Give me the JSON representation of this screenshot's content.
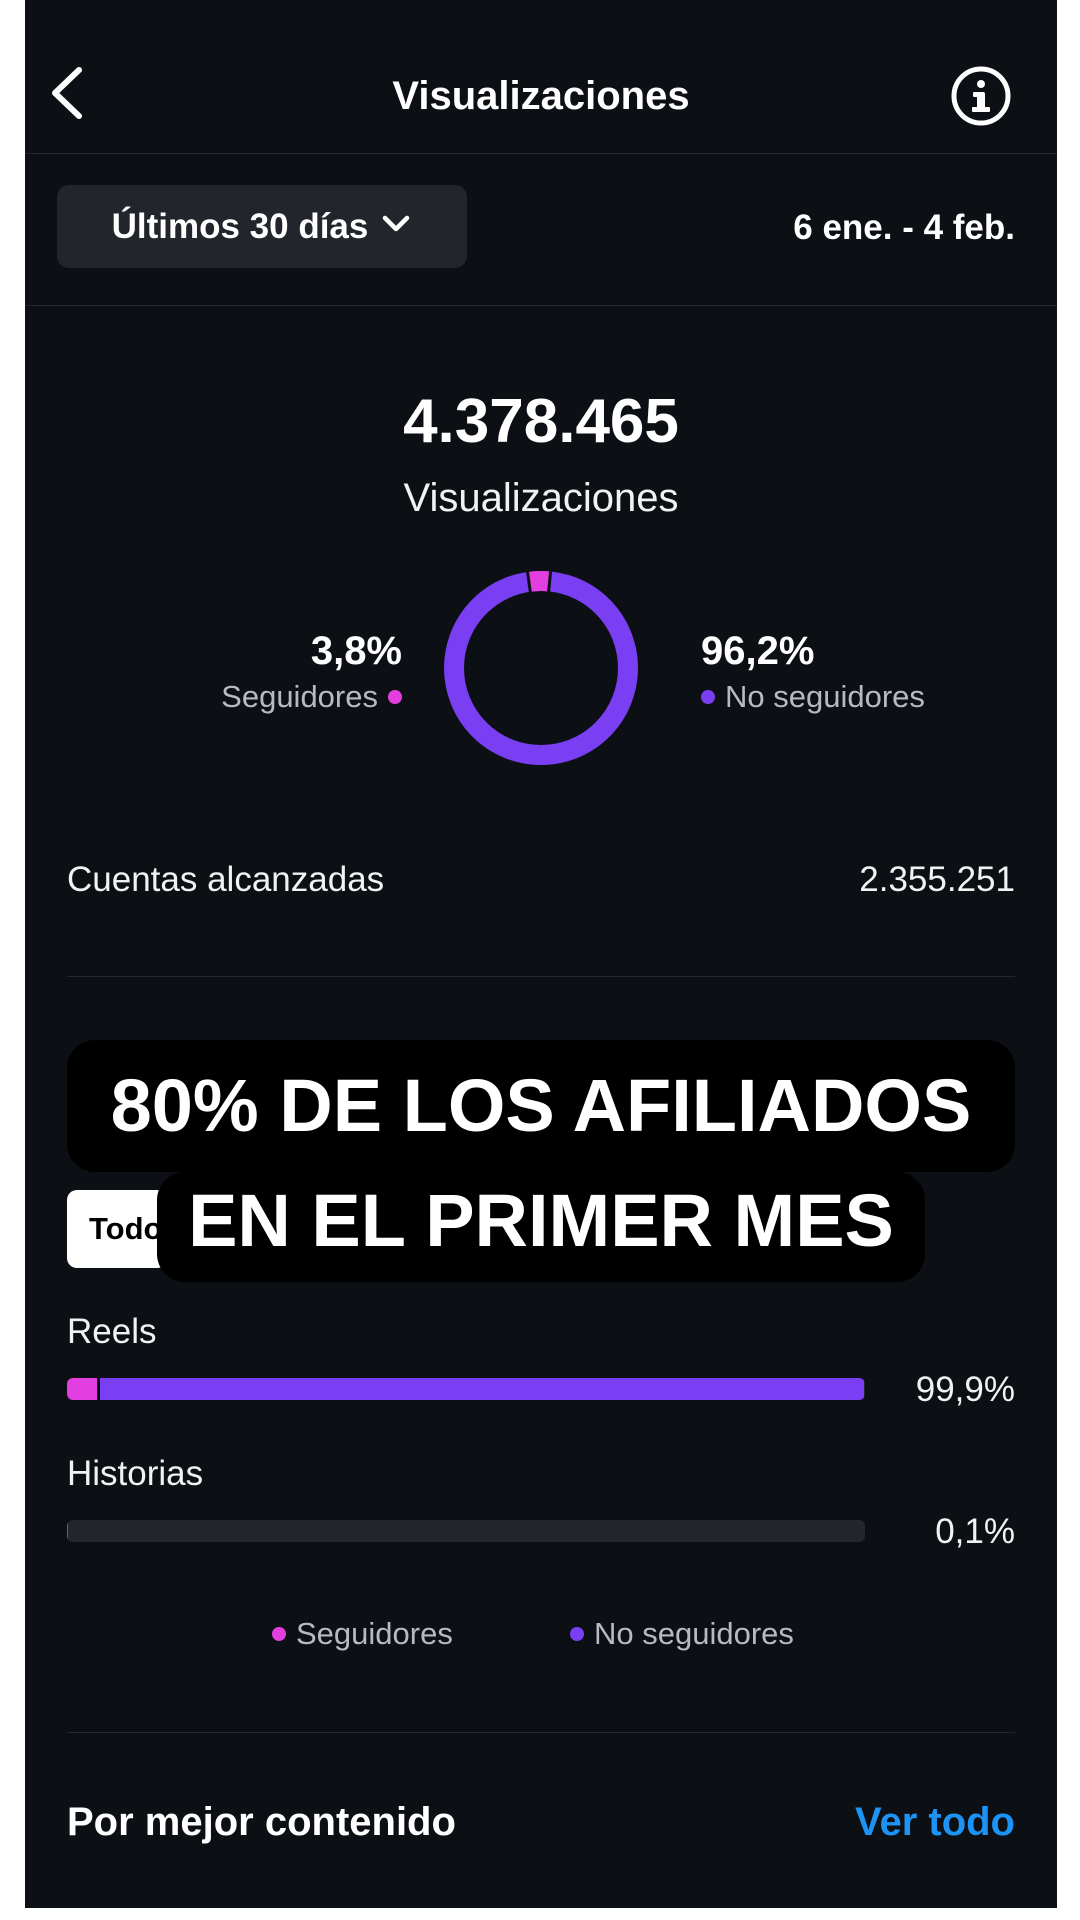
{
  "header": {
    "title": "Visualizaciones",
    "back_icon": "chevron-left-icon",
    "info_icon": "info-circle-icon"
  },
  "filters": {
    "range_label": "Últimos 30 días",
    "range_icon": "chevron-down-icon",
    "date_range": "6 ene. - 4 feb."
  },
  "summary": {
    "total": "4.378.465",
    "total_label": "Visualizaciones",
    "followers": {
      "pct_label": "3,8%",
      "fraction": 0.038,
      "label": "Seguidores",
      "color": "#e23ee0"
    },
    "non_followers": {
      "pct_label": "96,2%",
      "fraction": 0.962,
      "label": "No seguidores",
      "color": "#7a3ff2"
    }
  },
  "reach": {
    "label": "Cuentas alcanzadas",
    "value": "2.355.251"
  },
  "overlay": {
    "line1": "80% DE LOS AFILIADOS",
    "line2": "EN EL PRIMER MES",
    "hidden_tab_label": "Todo"
  },
  "content_types": [
    {
      "label": "Reels",
      "pct_label": "99,9%",
      "share": 0.999,
      "followers_fraction": 0.038
    },
    {
      "label": "Historias",
      "pct_label": "0,1%",
      "share": 0.001,
      "followers_fraction": 0.0
    }
  ],
  "legend": {
    "followers": "Seguidores",
    "non_followers": "No seguidores"
  },
  "footer": {
    "section_title": "Por mejor contenido",
    "see_all": "Ver todo"
  },
  "colors": {
    "background": "#0c0f14",
    "followers": "#e23ee0",
    "non_followers": "#7a3ff2",
    "link": "#1d93f5"
  }
}
